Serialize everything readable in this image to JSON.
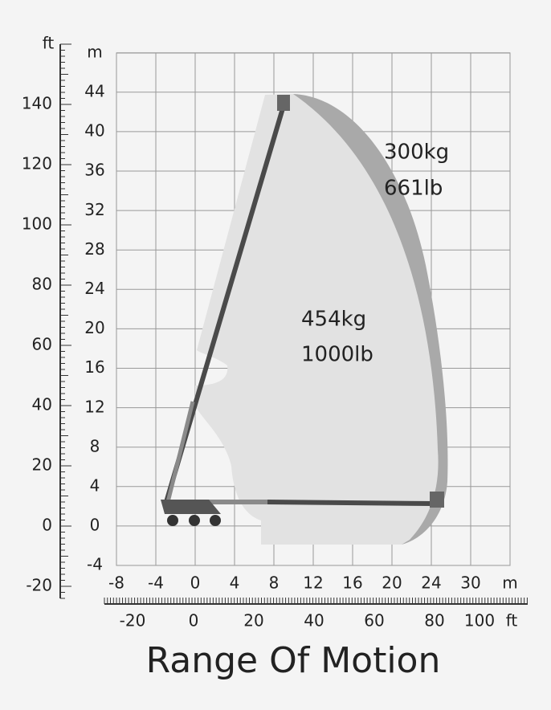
{
  "title": "Range Of Motion",
  "left_axis": {
    "unit": "ft",
    "labels": [
      "140",
      "120",
      "100",
      "80",
      "60",
      "40",
      "20",
      "0",
      "-20"
    ]
  },
  "meter_axis_y": {
    "unit": "m",
    "labels": [
      "44",
      "40",
      "36",
      "32",
      "28",
      "24",
      "20",
      "16",
      "12",
      "8",
      "4",
      "0",
      "-4"
    ]
  },
  "meter_axis_x": {
    "unit": "m",
    "labels": [
      "-8",
      "-4",
      "0",
      "4",
      "8",
      "12",
      "16",
      "20",
      "24",
      "30"
    ]
  },
  "bottom_axis": {
    "unit": "ft",
    "labels": [
      "-20",
      "0",
      "20",
      "40",
      "60",
      "80",
      "100"
    ]
  },
  "zones": [
    {
      "capacity_kg": "300kg",
      "capacity_lb": "661lb"
    },
    {
      "capacity_kg": "454kg",
      "capacity_lb": "1000lb"
    }
  ]
}
